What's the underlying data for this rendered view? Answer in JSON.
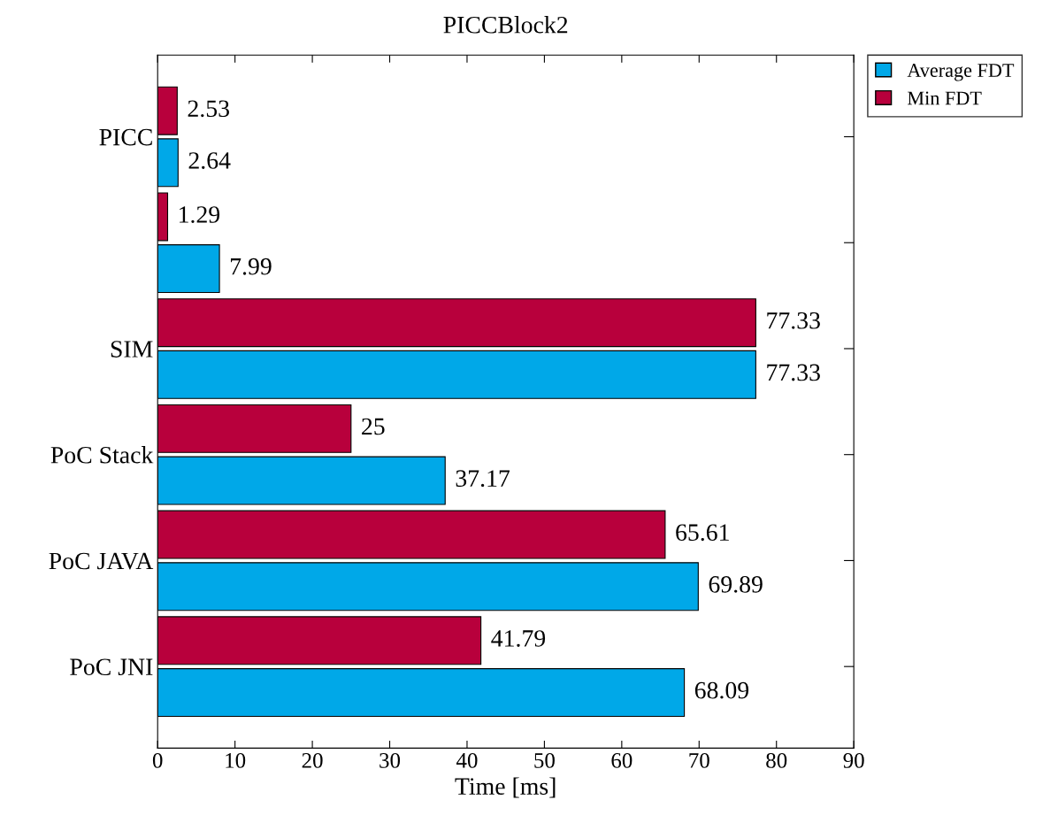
{
  "chart_data": {
    "type": "bar",
    "orientation": "horizontal",
    "title": "PICCBlock2",
    "xlabel": "Time [ms]",
    "categories": [
      "PICC",
      null,
      "SIM",
      "PoC Stack",
      "PoC JAVA",
      "PoC JNI"
    ],
    "series": [
      {
        "name": "Average FDT",
        "color": "#00a8e8",
        "values": [
          2.64,
          7.99,
          77.33,
          37.17,
          69.89,
          68.09
        ]
      },
      {
        "name": "Min FDT",
        "color": "#b8003c",
        "values": [
          2.53,
          1.29,
          77.33,
          25,
          65.61,
          41.79
        ]
      }
    ],
    "xlim": [
      0,
      90
    ],
    "xticks": [
      0,
      10,
      20,
      30,
      40,
      50,
      60,
      70,
      80,
      90
    ],
    "data_labels": true,
    "legend": "top right",
    "grid": false
  }
}
